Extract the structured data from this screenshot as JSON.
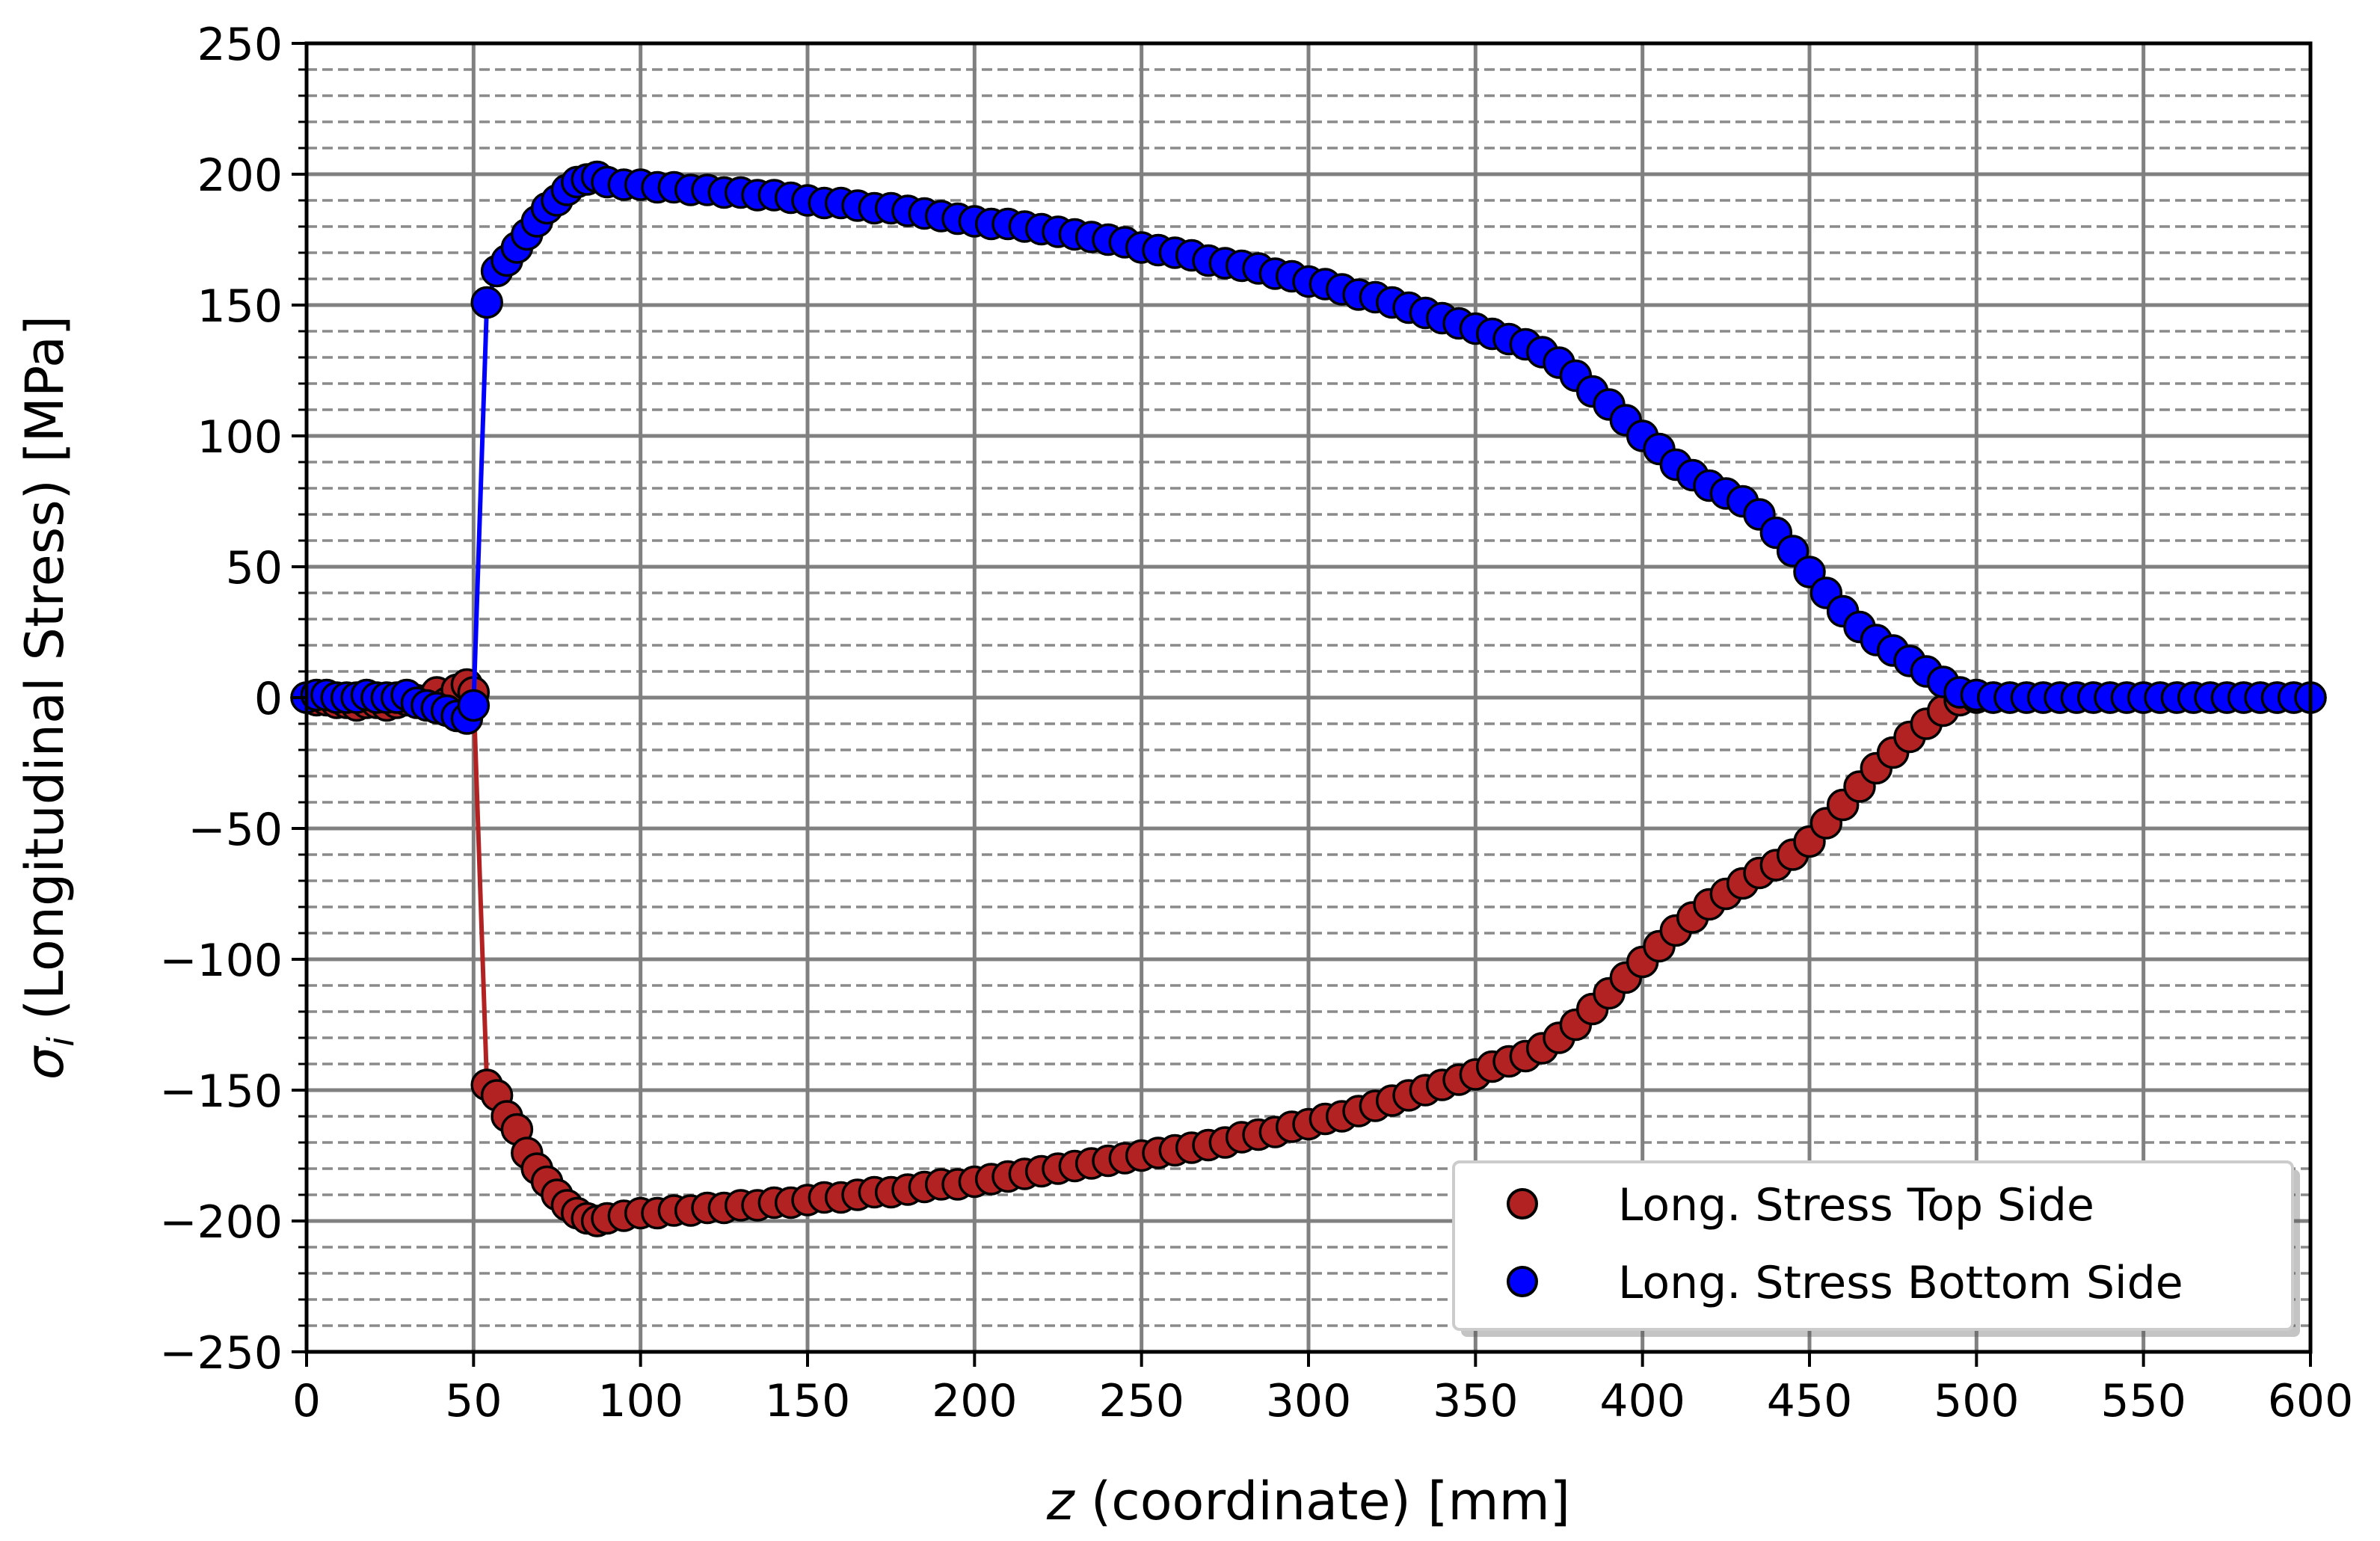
{
  "chart_data": {
    "type": "scatter",
    "title": "",
    "xlabel_var": "z",
    "xlabel_rest": " (coordinate) [mm]",
    "ylabel_var": "σ",
    "ylabel_sub": "i",
    "ylabel_rest": " (Longitudinal Stress) [MPa]",
    "xlim": [
      0,
      600
    ],
    "ylim": [
      -250,
      250
    ],
    "xticks": [
      0,
      50,
      100,
      150,
      200,
      250,
      300,
      350,
      400,
      450,
      500,
      550,
      600
    ],
    "xtick_labels": [
      "0",
      "50",
      "100",
      "150",
      "200",
      "250",
      "300",
      "350",
      "400",
      "450",
      "500",
      "550",
      "600"
    ],
    "yticks": [
      -250,
      -200,
      -150,
      -100,
      -50,
      0,
      50,
      100,
      150,
      200,
      250
    ],
    "ytick_labels": [
      "−250",
      "−200",
      "−150",
      "−100",
      "−50",
      "0",
      "50",
      "100",
      "150",
      "200",
      "250"
    ],
    "y_minor_step": 10,
    "grid": "major solid, minor dashed",
    "legend_position": "lower right",
    "series": [
      {
        "name": "Long. Stress Top Side",
        "color": "#b22222",
        "points": [
          [
            0,
            0
          ],
          [
            3,
            -1
          ],
          [
            6,
            -1
          ],
          [
            9,
            -2
          ],
          [
            12,
            -2
          ],
          [
            15,
            -3
          ],
          [
            18,
            -2
          ],
          [
            21,
            -2
          ],
          [
            24,
            -3
          ],
          [
            27,
            -2
          ],
          [
            30,
            -1
          ],
          [
            33,
            -1
          ],
          [
            36,
            -1
          ],
          [
            39,
            2
          ],
          [
            42,
            -2
          ],
          [
            45,
            3
          ],
          [
            48,
            5
          ],
          [
            50,
            2
          ],
          [
            54,
            -148
          ],
          [
            57,
            -152
          ],
          [
            60,
            -160
          ],
          [
            63,
            -165
          ],
          [
            66,
            -174
          ],
          [
            69,
            -180
          ],
          [
            72,
            -185
          ],
          [
            75,
            -190
          ],
          [
            78,
            -194
          ],
          [
            81,
            -197
          ],
          [
            84,
            -199
          ],
          [
            87,
            -200
          ],
          [
            90,
            -199
          ],
          [
            95,
            -198
          ],
          [
            100,
            -197
          ],
          [
            105,
            -197
          ],
          [
            110,
            -196
          ],
          [
            115,
            -196
          ],
          [
            120,
            -195
          ],
          [
            125,
            -195
          ],
          [
            130,
            -194
          ],
          [
            135,
            -194
          ],
          [
            140,
            -193
          ],
          [
            145,
            -193
          ],
          [
            150,
            -192
          ],
          [
            155,
            -191
          ],
          [
            160,
            -191
          ],
          [
            165,
            -190
          ],
          [
            170,
            -189
          ],
          [
            175,
            -189
          ],
          [
            180,
            -188
          ],
          [
            185,
            -187
          ],
          [
            190,
            -186
          ],
          [
            195,
            -186
          ],
          [
            200,
            -185
          ],
          [
            205,
            -184
          ],
          [
            210,
            -183
          ],
          [
            215,
            -182
          ],
          [
            220,
            -181
          ],
          [
            225,
            -180
          ],
          [
            230,
            -179
          ],
          [
            235,
            -178
          ],
          [
            240,
            -177
          ],
          [
            245,
            -176
          ],
          [
            250,
            -175
          ],
          [
            255,
            -174
          ],
          [
            260,
            -173
          ],
          [
            265,
            -172
          ],
          [
            270,
            -171
          ],
          [
            275,
            -170
          ],
          [
            280,
            -168
          ],
          [
            285,
            -167
          ],
          [
            290,
            -166
          ],
          [
            295,
            -164
          ],
          [
            300,
            -163
          ],
          [
            305,
            -161
          ],
          [
            310,
            -160
          ],
          [
            315,
            -158
          ],
          [
            320,
            -156
          ],
          [
            325,
            -154
          ],
          [
            330,
            -152
          ],
          [
            335,
            -150
          ],
          [
            340,
            -148
          ],
          [
            345,
            -146
          ],
          [
            350,
            -144
          ],
          [
            355,
            -141
          ],
          [
            360,
            -139
          ],
          [
            365,
            -137
          ],
          [
            370,
            -134
          ],
          [
            375,
            -130
          ],
          [
            380,
            -125
          ],
          [
            385,
            -119
          ],
          [
            390,
            -113
          ],
          [
            395,
            -107
          ],
          [
            400,
            -101
          ],
          [
            405,
            -95
          ],
          [
            410,
            -89
          ],
          [
            415,
            -84
          ],
          [
            420,
            -79
          ],
          [
            425,
            -75
          ],
          [
            430,
            -71
          ],
          [
            435,
            -67
          ],
          [
            440,
            -64
          ],
          [
            445,
            -60
          ],
          [
            450,
            -55
          ],
          [
            455,
            -48
          ],
          [
            460,
            -41
          ],
          [
            465,
            -34
          ],
          [
            470,
            -27
          ],
          [
            475,
            -21
          ],
          [
            480,
            -15
          ],
          [
            485,
            -10
          ],
          [
            490,
            -5
          ],
          [
            495,
            -1
          ],
          [
            500,
            0
          ],
          [
            505,
            0
          ],
          [
            510,
            0
          ],
          [
            515,
            0
          ],
          [
            520,
            0
          ],
          [
            525,
            0
          ],
          [
            530,
            0
          ],
          [
            535,
            0
          ],
          [
            540,
            0
          ],
          [
            545,
            0
          ],
          [
            550,
            0
          ],
          [
            555,
            0
          ],
          [
            560,
            0
          ],
          [
            565,
            0
          ],
          [
            570,
            0
          ],
          [
            575,
            0
          ],
          [
            580,
            0
          ],
          [
            585,
            0
          ],
          [
            590,
            0
          ],
          [
            595,
            0
          ],
          [
            600,
            0
          ]
        ]
      },
      {
        "name": "Long. Stress Bottom Side",
        "color": "#0000ff",
        "points": [
          [
            0,
            0
          ],
          [
            3,
            1
          ],
          [
            6,
            1
          ],
          [
            9,
            0
          ],
          [
            12,
            0
          ],
          [
            15,
            0
          ],
          [
            18,
            1
          ],
          [
            21,
            0
          ],
          [
            24,
            0
          ],
          [
            27,
            0
          ],
          [
            30,
            1
          ],
          [
            33,
            -2
          ],
          [
            36,
            -3
          ],
          [
            39,
            -4
          ],
          [
            42,
            -5
          ],
          [
            45,
            -7
          ],
          [
            48,
            -8
          ],
          [
            50,
            -3
          ],
          [
            54,
            151
          ],
          [
            57,
            163
          ],
          [
            60,
            167
          ],
          [
            63,
            172
          ],
          [
            66,
            177
          ],
          [
            69,
            182
          ],
          [
            72,
            187
          ],
          [
            75,
            190
          ],
          [
            78,
            194
          ],
          [
            81,
            197
          ],
          [
            84,
            198
          ],
          [
            87,
            199
          ],
          [
            90,
            197
          ],
          [
            95,
            196
          ],
          [
            100,
            196
          ],
          [
            105,
            195
          ],
          [
            110,
            195
          ],
          [
            115,
            194
          ],
          [
            120,
            194
          ],
          [
            125,
            193
          ],
          [
            130,
            193
          ],
          [
            135,
            192
          ],
          [
            140,
            192
          ],
          [
            145,
            191
          ],
          [
            150,
            190
          ],
          [
            155,
            189
          ],
          [
            160,
            189
          ],
          [
            165,
            188
          ],
          [
            170,
            187
          ],
          [
            175,
            187
          ],
          [
            180,
            186
          ],
          [
            185,
            185
          ],
          [
            190,
            184
          ],
          [
            195,
            183
          ],
          [
            200,
            182
          ],
          [
            205,
            181
          ],
          [
            210,
            181
          ],
          [
            215,
            180
          ],
          [
            220,
            179
          ],
          [
            225,
            178
          ],
          [
            230,
            177
          ],
          [
            235,
            176
          ],
          [
            240,
            175
          ],
          [
            245,
            174
          ],
          [
            250,
            172
          ],
          [
            255,
            171
          ],
          [
            260,
            170
          ],
          [
            265,
            169
          ],
          [
            270,
            167
          ],
          [
            275,
            166
          ],
          [
            280,
            165
          ],
          [
            285,
            164
          ],
          [
            290,
            162
          ],
          [
            295,
            161
          ],
          [
            300,
            159
          ],
          [
            305,
            158
          ],
          [
            310,
            156
          ],
          [
            315,
            154
          ],
          [
            320,
            153
          ],
          [
            325,
            151
          ],
          [
            330,
            149
          ],
          [
            335,
            147
          ],
          [
            340,
            145
          ],
          [
            345,
            143
          ],
          [
            350,
            141
          ],
          [
            355,
            139
          ],
          [
            360,
            137
          ],
          [
            365,
            135
          ],
          [
            370,
            132
          ],
          [
            375,
            128
          ],
          [
            380,
            123
          ],
          [
            385,
            117
          ],
          [
            390,
            112
          ],
          [
            395,
            106
          ],
          [
            400,
            100
          ],
          [
            405,
            95
          ],
          [
            410,
            89
          ],
          [
            415,
            85
          ],
          [
            420,
            81
          ],
          [
            425,
            78
          ],
          [
            430,
            75
          ],
          [
            435,
            70
          ],
          [
            440,
            63
          ],
          [
            445,
            56
          ],
          [
            450,
            48
          ],
          [
            455,
            40
          ],
          [
            460,
            33
          ],
          [
            465,
            27
          ],
          [
            470,
            22
          ],
          [
            475,
            18
          ],
          [
            480,
            14
          ],
          [
            485,
            10
          ],
          [
            490,
            6
          ],
          [
            495,
            2
          ],
          [
            500,
            1
          ],
          [
            505,
            0
          ],
          [
            510,
            0
          ],
          [
            515,
            0
          ],
          [
            520,
            0
          ],
          [
            525,
            0
          ],
          [
            530,
            0
          ],
          [
            535,
            0
          ],
          [
            540,
            0
          ],
          [
            545,
            0
          ],
          [
            550,
            0
          ],
          [
            555,
            0
          ],
          [
            560,
            0
          ],
          [
            565,
            0
          ],
          [
            570,
            0
          ],
          [
            575,
            0
          ],
          [
            580,
            0
          ],
          [
            585,
            0
          ],
          [
            590,
            0
          ],
          [
            595,
            0
          ],
          [
            600,
            0
          ]
        ]
      }
    ]
  }
}
